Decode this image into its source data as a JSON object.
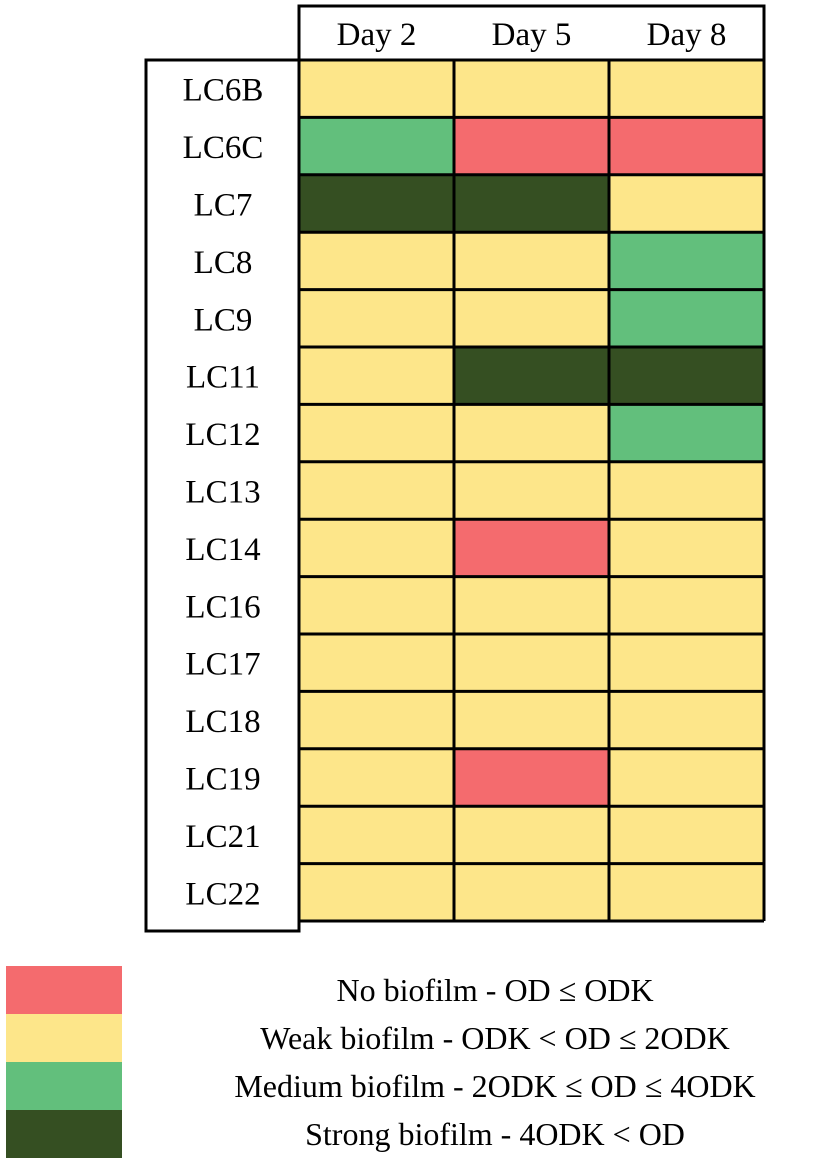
{
  "chart_data": {
    "type": "heatmap",
    "title": "",
    "xlabel": "",
    "ylabel": "",
    "columns": [
      "Day 2",
      "Day 5",
      "Day 8"
    ],
    "rows": [
      "LC6B",
      "LC6C",
      "LC7",
      "LC8",
      "LC9",
      "LC11",
      "LC12",
      "LC13",
      "LC14",
      "LC16",
      "LC17",
      "LC18",
      "LC19",
      "LC21",
      "LC22"
    ],
    "values": [
      [
        "Weak",
        "Weak",
        "Weak"
      ],
      [
        "Medium",
        "None",
        "None"
      ],
      [
        "Strong",
        "Strong",
        "Weak"
      ],
      [
        "Weak",
        "Weak",
        "Medium"
      ],
      [
        "Weak",
        "Weak",
        "Medium"
      ],
      [
        "Weak",
        "Strong",
        "Strong"
      ],
      [
        "Weak",
        "Weak",
        "Medium"
      ],
      [
        "Weak",
        "Weak",
        "Weak"
      ],
      [
        "Weak",
        "None",
        "Weak"
      ],
      [
        "Weak",
        "Weak",
        "Weak"
      ],
      [
        "Weak",
        "Weak",
        "Weak"
      ],
      [
        "Weak",
        "Weak",
        "Weak"
      ],
      [
        "Weak",
        "None",
        "Weak"
      ],
      [
        "Weak",
        "Weak",
        "Weak"
      ],
      [
        "Weak",
        "Weak",
        "Weak"
      ]
    ],
    "legend_placement": "bottom",
    "legend": [
      {
        "key": "None",
        "label": "No biofilm - OD ≤ ODK",
        "color": "#f46b6e"
      },
      {
        "key": "Weak",
        "label": "Weak biofilm - ODK  < OD ≤ 2ODK",
        "color": "#fde68a"
      },
      {
        "key": "Medium",
        "label": "Medium biofilm - 2ODK  ≤  OD ≤ 4ODK",
        "color": "#62bf7c"
      },
      {
        "key": "Strong",
        "label": "Strong biofilm - 4ODK < OD",
        "color": "#354f22"
      }
    ]
  }
}
